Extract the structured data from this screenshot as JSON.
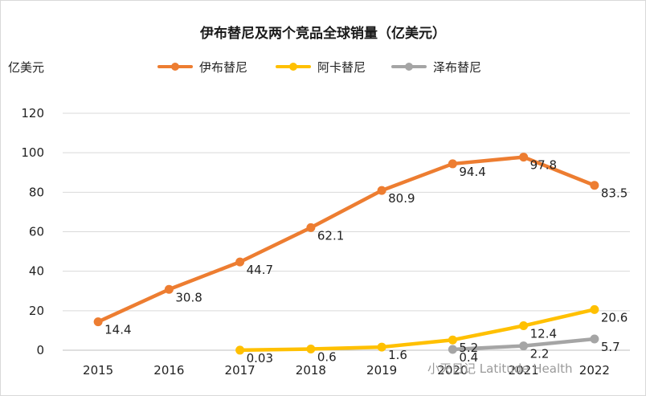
{
  "chart_data": {
    "type": "line",
    "title": "伊布替尼及两个竞品全球销量（亿美元）",
    "ylabel": "亿美元",
    "xlabel": "",
    "ylim": [
      0,
      120
    ],
    "yticks": [
      0,
      20,
      40,
      60,
      80,
      100,
      120
    ],
    "categories": [
      "2015",
      "2016",
      "2017",
      "2018",
      "2019",
      "2020",
      "2021",
      "2022"
    ],
    "grid": true,
    "legend_position": "top",
    "series": [
      {
        "name": "伊布替尼",
        "color": "#ED7D31",
        "values": [
          14.4,
          30.8,
          44.7,
          62.1,
          80.9,
          94.4,
          97.8,
          83.5
        ],
        "labels": [
          "14.4",
          "30.8",
          "44.7",
          "62.1",
          "80.9",
          "94.4",
          "97.8",
          "83.5"
        ]
      },
      {
        "name": "阿卡替尼",
        "color": "#FFC000",
        "values": [
          null,
          null,
          0.03,
          0.6,
          1.6,
          5.2,
          12.4,
          20.6
        ],
        "labels": [
          null,
          null,
          "0.03",
          "0.6",
          "1.6",
          "5.2",
          "12.4",
          "20.6"
        ]
      },
      {
        "name": "泽布替尼",
        "color": "#A5A5A5",
        "values": [
          null,
          null,
          null,
          null,
          null,
          0.4,
          2.2,
          5.7
        ],
        "labels": [
          null,
          null,
          null,
          null,
          null,
          "0.4",
          "2.2",
          "5.7"
        ]
      }
    ]
  },
  "watermark": "小天日记 Latitude Health"
}
